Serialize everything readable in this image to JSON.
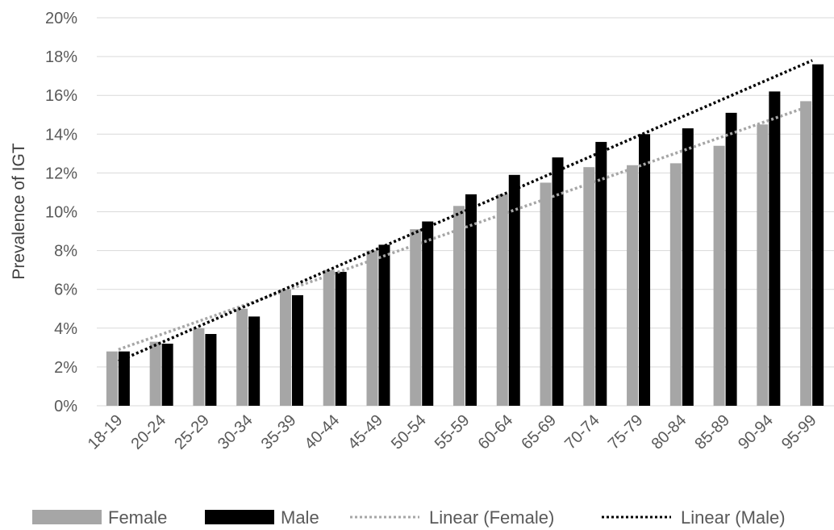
{
  "chart_data": {
    "type": "bar",
    "categories": [
      "18-19",
      "20-24",
      "25-29",
      "30-34",
      "35-39",
      "40-44",
      "45-49",
      "50-54",
      "55-59",
      "60-64",
      "65-69",
      "70-74",
      "75-79",
      "80-84",
      "85-89",
      "90-94",
      "95-99"
    ],
    "series": [
      {
        "name": "Female",
        "color": "#a6a6a6",
        "values": [
          2.8,
          3.3,
          4.0,
          5.0,
          6.0,
          7.0,
          8.0,
          9.1,
          10.3,
          10.9,
          11.5,
          12.3,
          12.4,
          12.5,
          13.4,
          14.5,
          15.7
        ]
      },
      {
        "name": "Male",
        "color": "#000000",
        "values": [
          2.8,
          3.2,
          3.7,
          4.6,
          5.7,
          6.9,
          8.3,
          9.5,
          10.9,
          11.9,
          12.8,
          13.6,
          14.0,
          14.3,
          15.1,
          16.2,
          17.6
        ]
      }
    ],
    "trendlines": [
      {
        "name": "Linear (Female)",
        "color": "#a6a6a6",
        "start": 2.9,
        "end": 15.5
      },
      {
        "name": "Linear (Male)",
        "color": "#000000",
        "start": 2.3,
        "end": 17.8
      }
    ],
    "ylabel": "Prevalence of IGT",
    "ylim": [
      0,
      20
    ],
    "yticks": [
      "0%",
      "2%",
      "4%",
      "6%",
      "8%",
      "10%",
      "12%",
      "14%",
      "16%",
      "18%",
      "20%"
    ],
    "grid": true,
    "legend_position": "bottom"
  }
}
